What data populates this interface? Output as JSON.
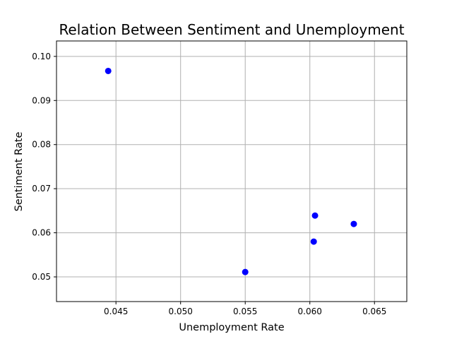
{
  "chart_data": {
    "type": "scatter",
    "title": "Relation Between Sentiment and Unemployment",
    "xlabel": "Unemployment Rate",
    "ylabel": "Sentiment Rate",
    "xlim": [
      0.0404,
      0.0675
    ],
    "ylim": [
      0.0444,
      0.1035
    ],
    "xticks": [
      "0.045",
      "0.050",
      "0.055",
      "0.060",
      "0.065"
    ],
    "yticks": [
      "0.05",
      "0.06",
      "0.07",
      "0.08",
      "0.09",
      "0.10"
    ],
    "grid": true,
    "marker_color": "#0000ff",
    "points": [
      {
        "x": 0.0444,
        "y": 0.0967
      },
      {
        "x": 0.055,
        "y": 0.0511
      },
      {
        "x": 0.0603,
        "y": 0.058
      },
      {
        "x": 0.0604,
        "y": 0.0639
      },
      {
        "x": 0.0634,
        "y": 0.062
      }
    ]
  }
}
